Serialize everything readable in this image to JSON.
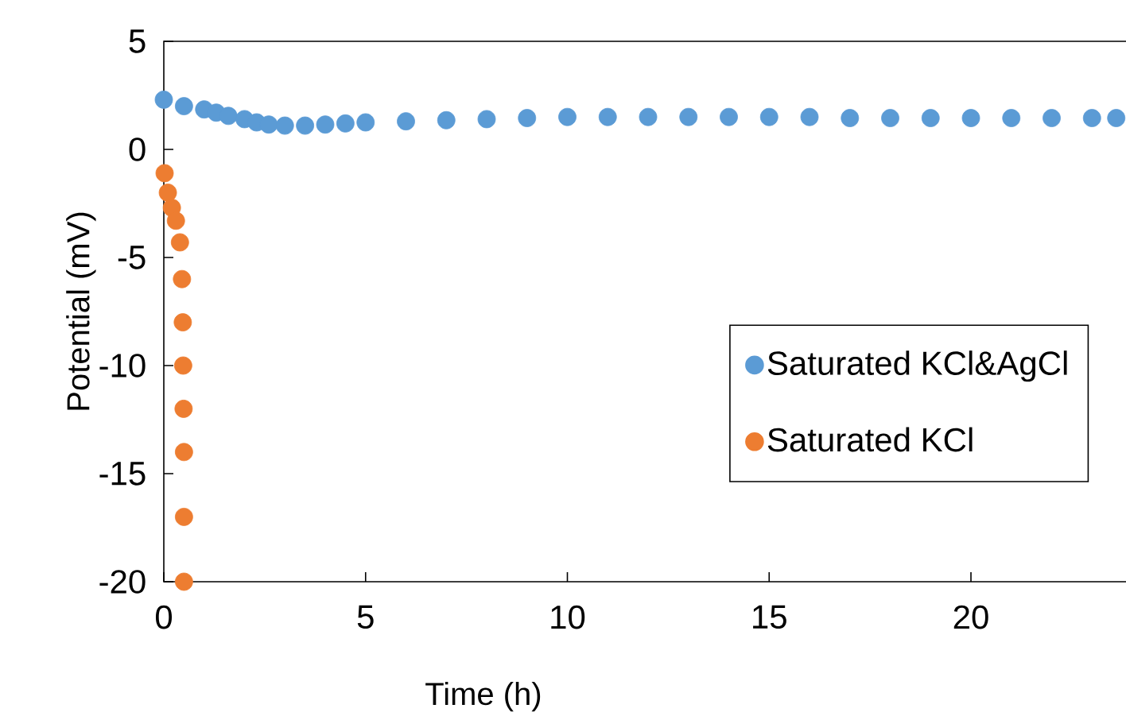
{
  "chart_data": {
    "type": "scatter",
    "xlabel": "Time (h)",
    "ylabel": "Potential (mV)",
    "xlim": [
      0,
      24
    ],
    "ylim": [
      -20,
      5
    ],
    "xticks": [
      0,
      5,
      10,
      15,
      20
    ],
    "yticks": [
      -20,
      -15,
      -10,
      -5,
      0,
      5
    ],
    "grid": false,
    "legend": "right",
    "marker": "circle",
    "series": [
      {
        "name": "Saturated KCl&AgCl",
        "color": "#5b9bd5",
        "x": [
          0,
          0.5,
          1.0,
          1.3,
          1.6,
          2.0,
          2.3,
          2.6,
          3.0,
          3.5,
          4,
          4.5,
          5,
          6,
          7,
          8,
          9,
          10,
          11,
          12,
          13,
          14,
          15,
          16,
          17,
          18,
          19,
          20,
          21,
          22,
          23,
          23.6
        ],
        "values": [
          2.3,
          2.0,
          1.85,
          1.7,
          1.55,
          1.4,
          1.25,
          1.15,
          1.1,
          1.1,
          1.15,
          1.2,
          1.25,
          1.3,
          1.35,
          1.4,
          1.45,
          1.5,
          1.5,
          1.5,
          1.5,
          1.5,
          1.5,
          1.5,
          1.45,
          1.45,
          1.45,
          1.45,
          1.45,
          1.45,
          1.45,
          1.45
        ]
      },
      {
        "name": "Saturated KCl",
        "color": "#ed7d31",
        "x": [
          0.02,
          0.1,
          0.2,
          0.3,
          0.4,
          0.45,
          0.47,
          0.48,
          0.49,
          0.5,
          0.5,
          0.5
        ],
        "values": [
          -1.1,
          -2,
          -2.7,
          -3.3,
          -4.3,
          -6,
          -8,
          -10,
          -12,
          -14,
          -17,
          -20
        ]
      }
    ]
  }
}
